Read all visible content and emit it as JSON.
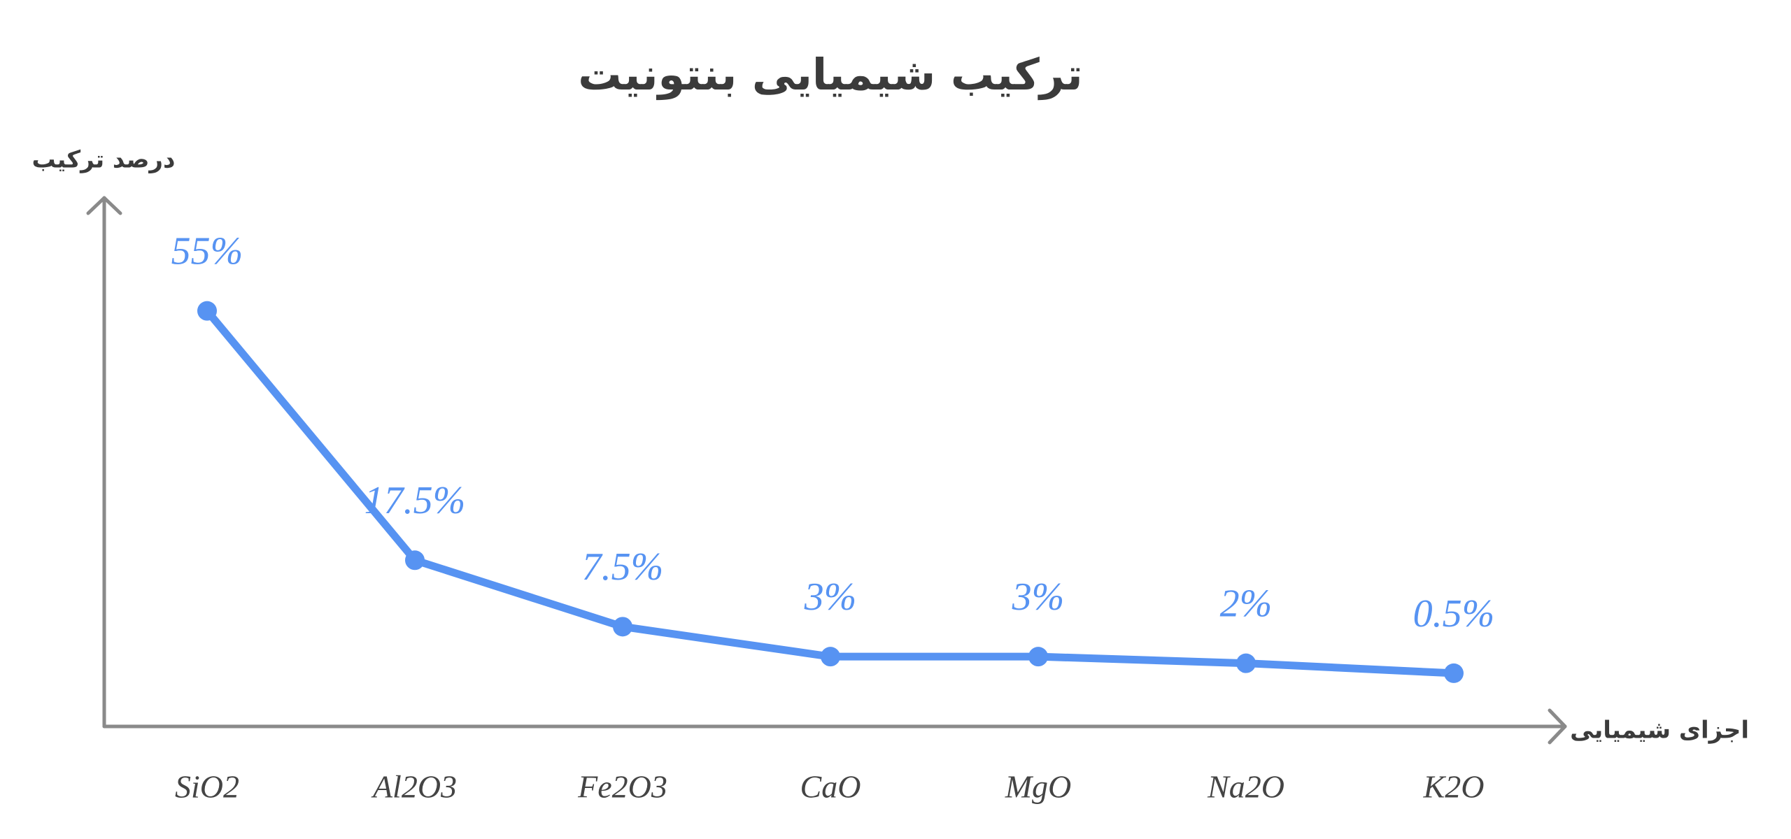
{
  "chart_data": {
    "type": "line",
    "title": "ترکیب شیمیایی بنتونیت",
    "y_label": "درصد ترکیب",
    "x_label": "اجزای شیمیایی",
    "categories": [
      "SiO2",
      "Al2O3",
      "Fe2O3",
      "CaO",
      "MgO",
      "Na2O",
      "K2O"
    ],
    "values": [
      55,
      17.5,
      7.5,
      3,
      3,
      2,
      0.5
    ],
    "value_labels": [
      "55%",
      "17.5%",
      "7.5%",
      "3%",
      "3%",
      "2%",
      "0.5%"
    ],
    "color": "#5793f2",
    "ylim": [
      -7.5,
      72
    ]
  }
}
